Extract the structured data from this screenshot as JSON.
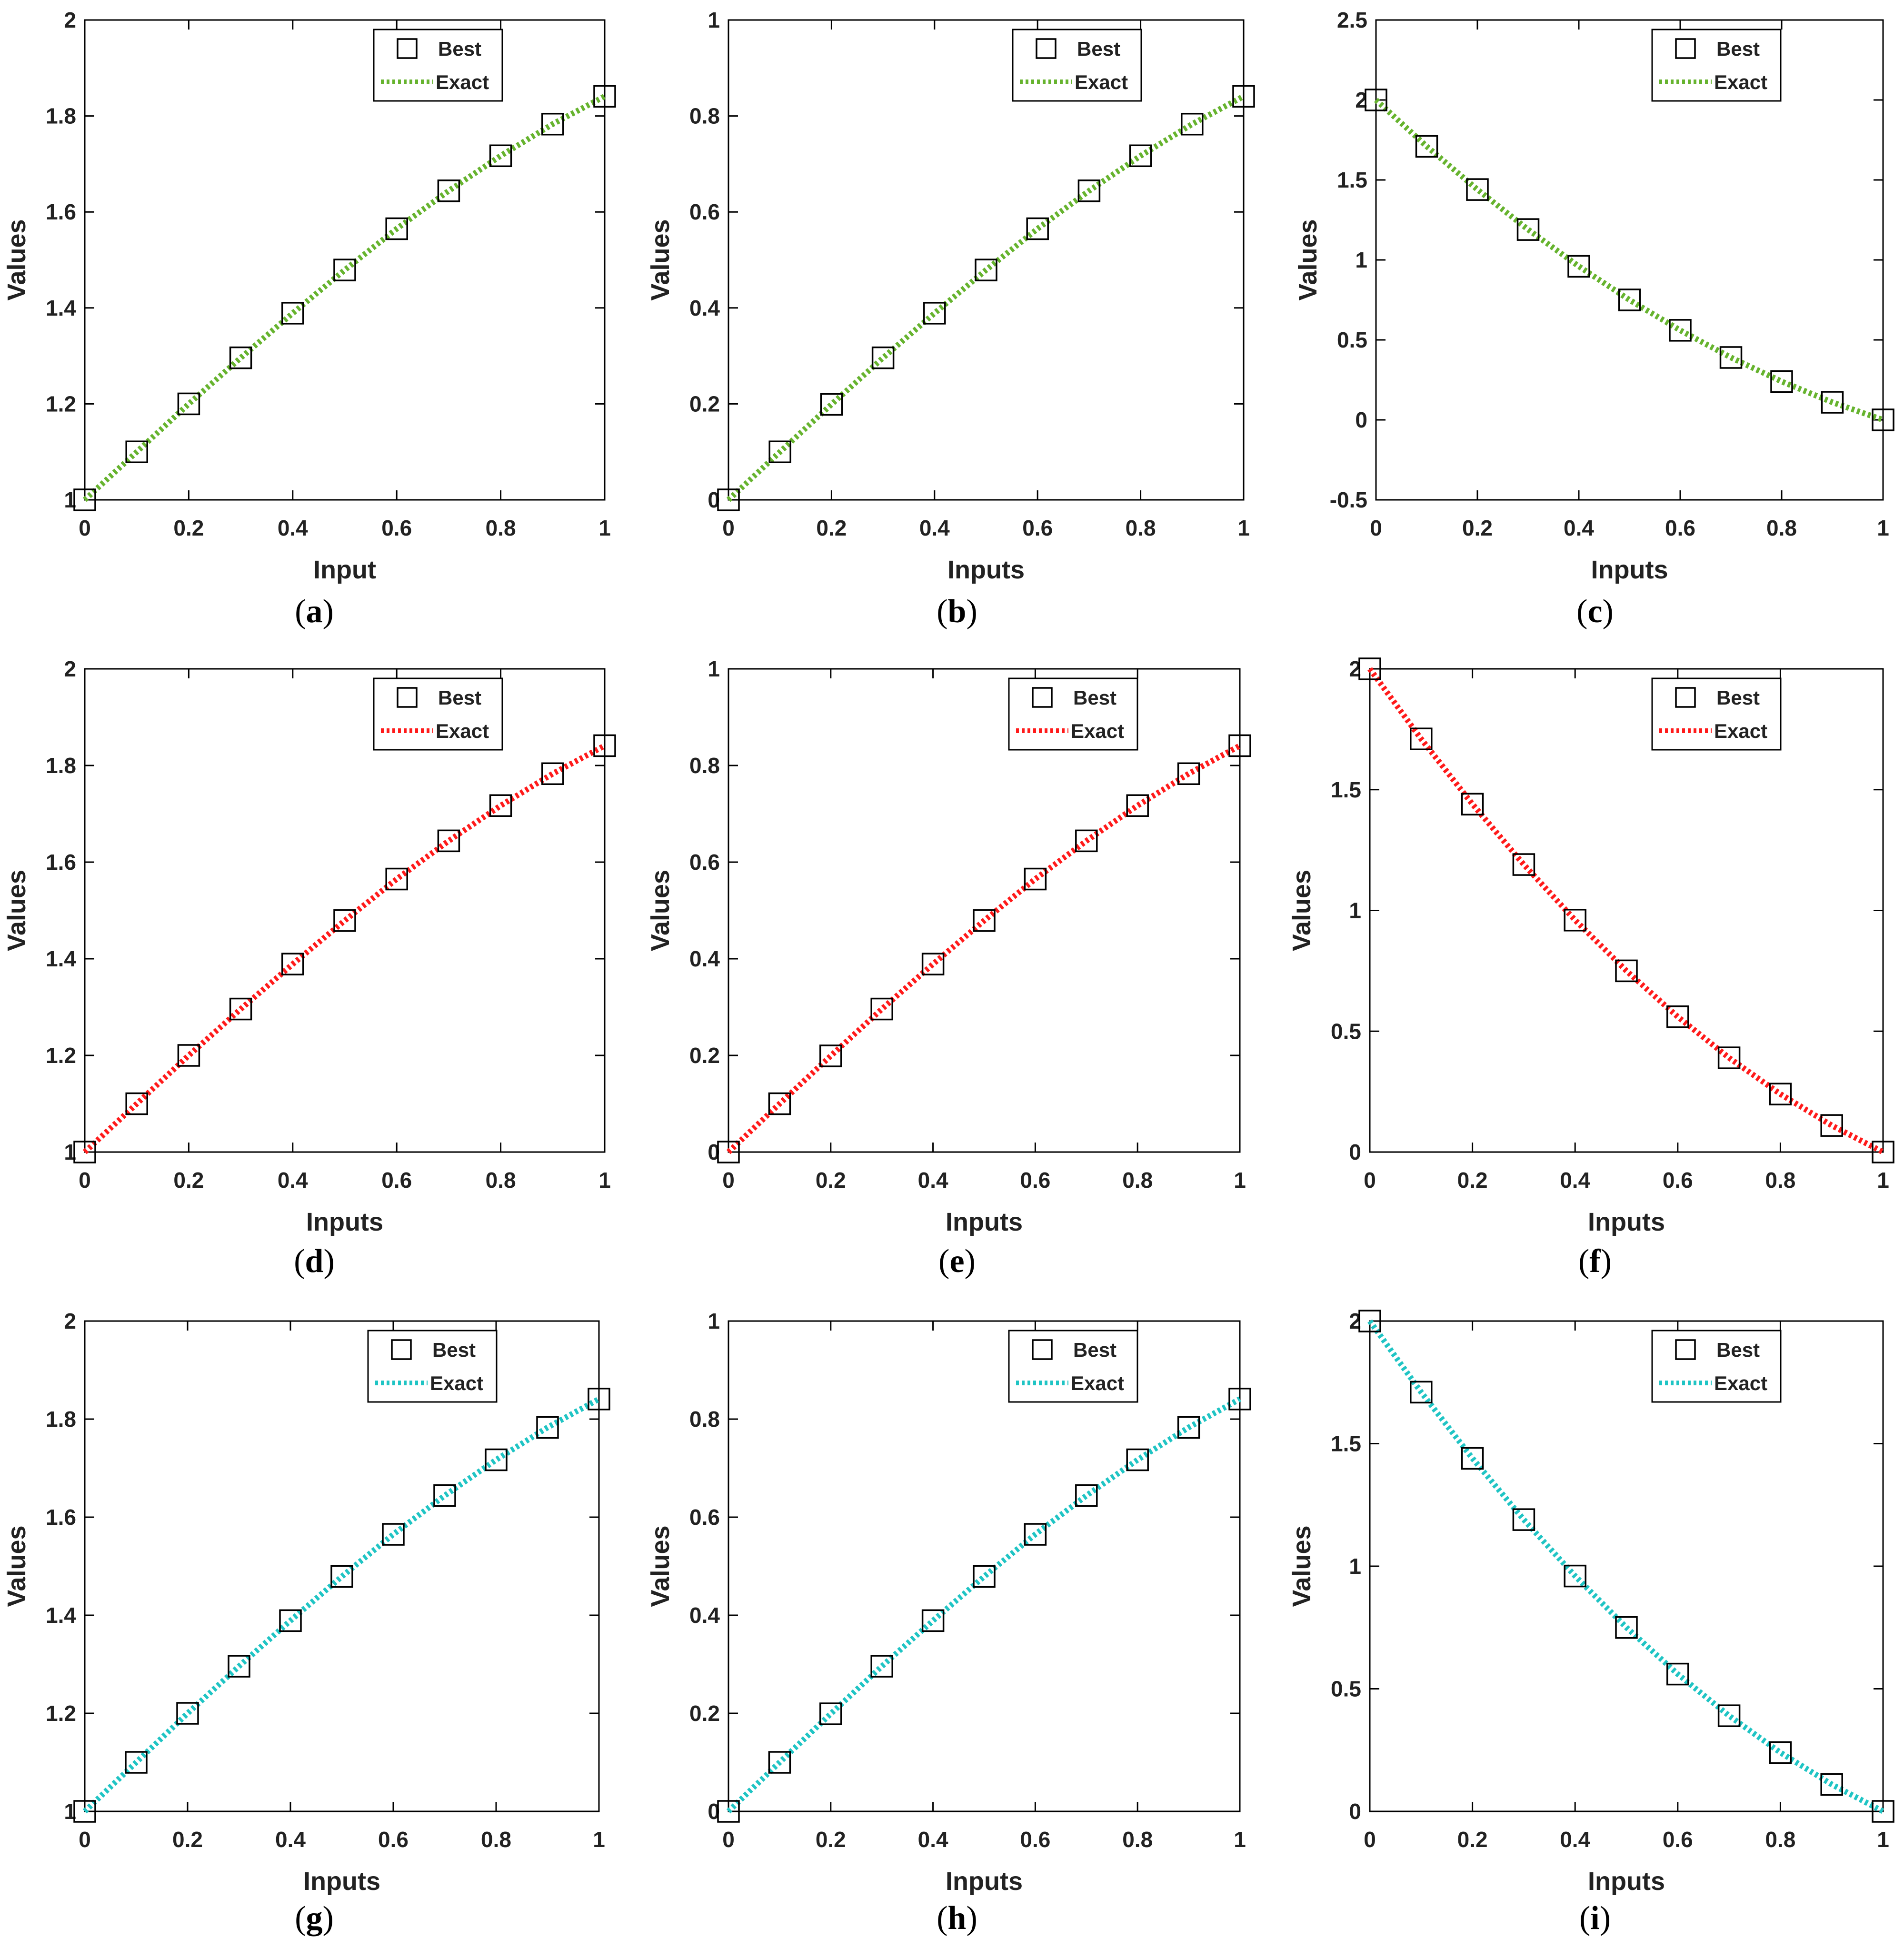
{
  "figure": {
    "legend_entries": [
      "Best",
      "Exact"
    ],
    "marker_label": "Best",
    "line_label": "Exact"
  },
  "colors": {
    "green": "#66b32e",
    "red": "#ff1a1a",
    "cyan": "#1fc4c4",
    "axis": "#000000"
  },
  "chart_data": [
    {
      "id": "a",
      "type": "line",
      "caption": "a",
      "title": "",
      "xlabel": "Input",
      "ylabel": "Values",
      "xlim": [
        0,
        1
      ],
      "ylim": [
        1,
        2
      ],
      "xticks": [
        "0",
        "0.2",
        "0.4",
        "0.6",
        "0.8",
        "1"
      ],
      "yticks": [
        "1",
        "1.2",
        "1.4",
        "1.6",
        "1.8",
        "2"
      ],
      "ytick_values": [
        1,
        1.2,
        1.4,
        1.6,
        1.8,
        2
      ],
      "line_color": "green",
      "legend": "top-right",
      "series": [
        {
          "name": "Best",
          "style": "square-markers",
          "x": [
            0,
            0.1,
            0.2,
            0.3,
            0.4,
            0.5,
            0.6,
            0.7,
            0.8,
            0.9,
            1
          ],
          "y": [
            1,
            1.1,
            1.2,
            1.296,
            1.389,
            1.479,
            1.565,
            1.644,
            1.717,
            1.783,
            1.841
          ]
        },
        {
          "name": "Exact",
          "style": "dotted-line",
          "x": [
            0,
            0.1,
            0.2,
            0.3,
            0.4,
            0.5,
            0.6,
            0.7,
            0.8,
            0.9,
            1
          ],
          "y": [
            1,
            1.1,
            1.2,
            1.296,
            1.389,
            1.479,
            1.565,
            1.644,
            1.717,
            1.783,
            1.841
          ]
        }
      ]
    },
    {
      "id": "b",
      "type": "line",
      "caption": "b",
      "title": "",
      "xlabel": "Inputs",
      "ylabel": "Values",
      "xlim": [
        0,
        1
      ],
      "ylim": [
        0,
        1
      ],
      "xticks": [
        "0",
        "0.2",
        "0.4",
        "0.6",
        "0.8",
        "1"
      ],
      "yticks": [
        "0",
        "0.2",
        "0.4",
        "0.6",
        "0.8",
        "1"
      ],
      "ytick_values": [
        0,
        0.2,
        0.4,
        0.6,
        0.8,
        1
      ],
      "line_color": "green",
      "legend": "top-right",
      "series": [
        {
          "name": "Best",
          "style": "square-markers",
          "x": [
            0,
            0.1,
            0.2,
            0.3,
            0.4,
            0.5,
            0.6,
            0.7,
            0.8,
            0.9,
            1
          ],
          "y": [
            0,
            0.1,
            0.199,
            0.296,
            0.389,
            0.479,
            0.565,
            0.644,
            0.717,
            0.783,
            0.841
          ]
        },
        {
          "name": "Exact",
          "style": "dotted-line",
          "x": [
            0,
            0.1,
            0.2,
            0.3,
            0.4,
            0.5,
            0.6,
            0.7,
            0.8,
            0.9,
            1
          ],
          "y": [
            0,
            0.1,
            0.199,
            0.296,
            0.389,
            0.479,
            0.565,
            0.644,
            0.717,
            0.783,
            0.841
          ]
        }
      ]
    },
    {
      "id": "c",
      "type": "line",
      "caption": "c",
      "title": "",
      "xlabel": "Inputs",
      "ylabel": "Values",
      "xlim": [
        0,
        1
      ],
      "ylim": [
        -0.5,
        2.5
      ],
      "xticks": [
        "0",
        "0.2",
        "0.4",
        "0.6",
        "0.8",
        "1"
      ],
      "yticks": [
        "-0.5",
        "0",
        "0.5",
        "1",
        "1.5",
        "2",
        "2.5"
      ],
      "ytick_values": [
        -0.5,
        0,
        0.5,
        1,
        1.5,
        2,
        2.5
      ],
      "line_color": "green",
      "legend": "top-right",
      "series": [
        {
          "name": "Best",
          "style": "square-markers",
          "x": [
            0,
            0.1,
            0.2,
            0.3,
            0.4,
            0.5,
            0.6,
            0.7,
            0.8,
            0.9,
            1
          ],
          "y": [
            2,
            1.71,
            1.44,
            1.19,
            0.96,
            0.75,
            0.56,
            0.39,
            0.24,
            0.11,
            0
          ]
        },
        {
          "name": "Exact",
          "style": "dotted-line",
          "x": [
            0,
            0.1,
            0.2,
            0.3,
            0.4,
            0.5,
            0.6,
            0.7,
            0.8,
            0.9,
            1
          ],
          "y": [
            2,
            1.71,
            1.44,
            1.19,
            0.96,
            0.75,
            0.56,
            0.39,
            0.24,
            0.11,
            0
          ]
        }
      ]
    },
    {
      "id": "d",
      "type": "line",
      "caption": "d",
      "title": "",
      "xlabel": "Inputs",
      "ylabel": "Values",
      "xlim": [
        0,
        1
      ],
      "ylim": [
        1,
        2
      ],
      "xticks": [
        "0",
        "0.2",
        "0.4",
        "0.6",
        "0.8",
        "1"
      ],
      "yticks": [
        "1",
        "1.2",
        "1.4",
        "1.6",
        "1.8",
        "2"
      ],
      "ytick_values": [
        1,
        1.2,
        1.4,
        1.6,
        1.8,
        2
      ],
      "line_color": "red",
      "legend": "top-right",
      "series": [
        {
          "name": "Best",
          "style": "square-markers",
          "x": [
            0,
            0.1,
            0.2,
            0.3,
            0.4,
            0.5,
            0.6,
            0.7,
            0.8,
            0.9,
            1
          ],
          "y": [
            1,
            1.1,
            1.2,
            1.296,
            1.389,
            1.479,
            1.565,
            1.644,
            1.717,
            1.783,
            1.841
          ]
        },
        {
          "name": "Exact",
          "style": "dotted-line",
          "x": [
            0,
            0.1,
            0.2,
            0.3,
            0.4,
            0.5,
            0.6,
            0.7,
            0.8,
            0.9,
            1
          ],
          "y": [
            1,
            1.1,
            1.2,
            1.296,
            1.389,
            1.479,
            1.565,
            1.644,
            1.717,
            1.783,
            1.841
          ]
        }
      ]
    },
    {
      "id": "e",
      "type": "line",
      "caption": "e",
      "title": "",
      "xlabel": "Inputs",
      "ylabel": "Values",
      "xlim": [
        0,
        1
      ],
      "ylim": [
        0,
        1
      ],
      "xticks": [
        "0",
        "0.2",
        "0.4",
        "0.6",
        "0.8",
        "1"
      ],
      "yticks": [
        "0",
        "0.2",
        "0.4",
        "0.6",
        "0.8",
        "1"
      ],
      "ytick_values": [
        0,
        0.2,
        0.4,
        0.6,
        0.8,
        1
      ],
      "line_color": "red",
      "legend": "top-right",
      "series": [
        {
          "name": "Best",
          "style": "square-markers",
          "x": [
            0,
            0.1,
            0.2,
            0.3,
            0.4,
            0.5,
            0.6,
            0.7,
            0.8,
            0.9,
            1
          ],
          "y": [
            0,
            0.1,
            0.199,
            0.296,
            0.389,
            0.479,
            0.565,
            0.644,
            0.717,
            0.783,
            0.841
          ]
        },
        {
          "name": "Exact",
          "style": "dotted-line",
          "x": [
            0,
            0.1,
            0.2,
            0.3,
            0.4,
            0.5,
            0.6,
            0.7,
            0.8,
            0.9,
            1
          ],
          "y": [
            0,
            0.1,
            0.199,
            0.296,
            0.389,
            0.479,
            0.565,
            0.644,
            0.717,
            0.783,
            0.841
          ]
        }
      ]
    },
    {
      "id": "f",
      "type": "line",
      "caption": "f",
      "title": "",
      "xlabel": "Inputs",
      "ylabel": "Values",
      "xlim": [
        0,
        1
      ],
      "ylim": [
        0,
        2
      ],
      "xticks": [
        "0",
        "0.2",
        "0.4",
        "0.6",
        "0.8",
        "1"
      ],
      "yticks": [
        "0",
        "0.5",
        "1",
        "1.5",
        "2"
      ],
      "ytick_values": [
        0,
        0.5,
        1,
        1.5,
        2
      ],
      "line_color": "red",
      "legend": "top-right",
      "series": [
        {
          "name": "Best",
          "style": "square-markers",
          "x": [
            0,
            0.1,
            0.2,
            0.3,
            0.4,
            0.5,
            0.6,
            0.7,
            0.8,
            0.9,
            1
          ],
          "y": [
            2,
            1.71,
            1.44,
            1.19,
            0.96,
            0.75,
            0.56,
            0.39,
            0.24,
            0.11,
            0
          ]
        },
        {
          "name": "Exact",
          "style": "dotted-line",
          "x": [
            0,
            0.1,
            0.2,
            0.3,
            0.4,
            0.5,
            0.6,
            0.7,
            0.8,
            0.9,
            1
          ],
          "y": [
            2,
            1.71,
            1.44,
            1.19,
            0.96,
            0.75,
            0.56,
            0.39,
            0.24,
            0.11,
            0
          ]
        }
      ]
    },
    {
      "id": "g",
      "type": "line",
      "caption": "g",
      "title": "",
      "xlabel": "Inputs",
      "ylabel": "Values",
      "xlim": [
        0,
        1
      ],
      "ylim": [
        1,
        2
      ],
      "xticks": [
        "0",
        "0.2",
        "0.4",
        "0.6",
        "0.8",
        "1"
      ],
      "yticks": [
        "1",
        "1.2",
        "1.4",
        "1.6",
        "1.8",
        "2"
      ],
      "ytick_values": [
        1,
        1.2,
        1.4,
        1.6,
        1.8,
        2
      ],
      "line_color": "cyan",
      "legend": "top-right",
      "series": [
        {
          "name": "Best",
          "style": "square-markers",
          "x": [
            0,
            0.1,
            0.2,
            0.3,
            0.4,
            0.5,
            0.6,
            0.7,
            0.8,
            0.9,
            1
          ],
          "y": [
            1,
            1.1,
            1.2,
            1.296,
            1.389,
            1.479,
            1.565,
            1.644,
            1.717,
            1.783,
            1.841
          ]
        },
        {
          "name": "Exact",
          "style": "dotted-line",
          "x": [
            0,
            0.1,
            0.2,
            0.3,
            0.4,
            0.5,
            0.6,
            0.7,
            0.8,
            0.9,
            1
          ],
          "y": [
            1,
            1.1,
            1.2,
            1.296,
            1.389,
            1.479,
            1.565,
            1.644,
            1.717,
            1.783,
            1.841
          ]
        }
      ]
    },
    {
      "id": "h",
      "type": "line",
      "caption": "h",
      "title": "",
      "xlabel": "Inputs",
      "ylabel": "Values",
      "xlim": [
        0,
        1
      ],
      "ylim": [
        0,
        1
      ],
      "xticks": [
        "0",
        "0.2",
        "0.4",
        "0.6",
        "0.8",
        "1"
      ],
      "yticks": [
        "0",
        "0.2",
        "0.4",
        "0.6",
        "0.8",
        "1"
      ],
      "ytick_values": [
        0,
        0.2,
        0.4,
        0.6,
        0.8,
        1
      ],
      "line_color": "cyan",
      "legend": "top-right",
      "series": [
        {
          "name": "Best",
          "style": "square-markers",
          "x": [
            0,
            0.1,
            0.2,
            0.3,
            0.4,
            0.5,
            0.6,
            0.7,
            0.8,
            0.9,
            1
          ],
          "y": [
            0,
            0.1,
            0.199,
            0.296,
            0.389,
            0.479,
            0.565,
            0.644,
            0.717,
            0.783,
            0.841
          ]
        },
        {
          "name": "Exact",
          "style": "dotted-line",
          "x": [
            0,
            0.1,
            0.2,
            0.3,
            0.4,
            0.5,
            0.6,
            0.7,
            0.8,
            0.9,
            1
          ],
          "y": [
            0,
            0.1,
            0.199,
            0.296,
            0.389,
            0.479,
            0.565,
            0.644,
            0.717,
            0.783,
            0.841
          ]
        }
      ]
    },
    {
      "id": "i",
      "type": "line",
      "caption": "i",
      "title": "",
      "xlabel": "Inputs",
      "ylabel": "Values",
      "xlim": [
        0,
        1
      ],
      "ylim": [
        0,
        2
      ],
      "xticks": [
        "0",
        "0.2",
        "0.4",
        "0.6",
        "0.8",
        "1"
      ],
      "yticks": [
        "0",
        "0.5",
        "1",
        "1.5",
        "2"
      ],
      "ytick_values": [
        0,
        0.5,
        1,
        1.5,
        2
      ],
      "line_color": "cyan",
      "legend": "top-right",
      "series": [
        {
          "name": "Best",
          "style": "square-markers",
          "x": [
            0,
            0.1,
            0.2,
            0.3,
            0.4,
            0.5,
            0.6,
            0.7,
            0.8,
            0.9,
            1
          ],
          "y": [
            2,
            1.71,
            1.44,
            1.19,
            0.96,
            0.75,
            0.56,
            0.39,
            0.24,
            0.11,
            0
          ]
        },
        {
          "name": "Exact",
          "style": "dotted-line",
          "x": [
            0,
            0.1,
            0.2,
            0.3,
            0.4,
            0.5,
            0.6,
            0.7,
            0.8,
            0.9,
            1
          ],
          "y": [
            2,
            1.71,
            1.44,
            1.19,
            0.96,
            0.75,
            0.56,
            0.39,
            0.24,
            0.11,
            0
          ]
        }
      ]
    }
  ]
}
